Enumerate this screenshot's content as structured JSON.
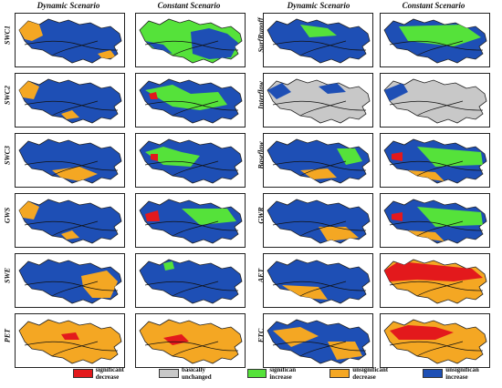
{
  "columns": [
    {
      "label": "Dynamic Scenario"
    },
    {
      "label": "Constant Scenario"
    },
    {
      "label": "Dynamic Scenario"
    },
    {
      "label": "Constant Scenario"
    }
  ],
  "rows_left": [
    "SWC1",
    "SWC2",
    "SWC3",
    "GWS",
    "SWE",
    "PET"
  ],
  "rows_right": [
    "SurfRunoff",
    "Interflow",
    "Baseflow",
    "GWR",
    "AET",
    "ETC"
  ],
  "legend": [
    {
      "label": "significant decrease",
      "color": "#e3191c"
    },
    {
      "label": "basically unchanged",
      "color": "#c8c8c8"
    },
    {
      "label": "significan increase",
      "color": "#55e23a"
    },
    {
      "label": "unsignificant decrease",
      "color": "#f4a723"
    },
    {
      "label": "unsignifican increase",
      "color": "#1e4fb5"
    }
  ],
  "colors": {
    "significant_decrease": "#e3191c",
    "unchanged": "#c8c8c8",
    "significant_increase": "#55e23a",
    "unsignificant_decrease": "#f4a723",
    "unsignificant_increase": "#1e4fb5"
  }
}
